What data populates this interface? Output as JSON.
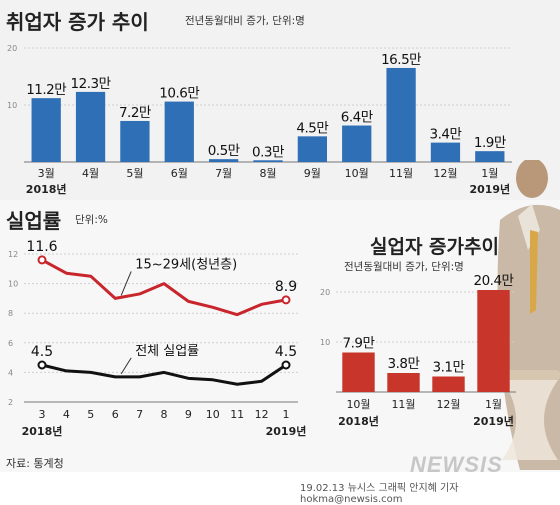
{
  "chart_data": [
    {
      "type": "bar",
      "title": "취업자 증가 추이",
      "subtitle": "전년동월대비 증가, 단위:명",
      "categories": [
        "3월",
        "4월",
        "5월",
        "6월",
        "7월",
        "8월",
        "9월",
        "10월",
        "11월",
        "12월",
        "1월"
      ],
      "values": [
        11.2,
        12.3,
        7.2,
        10.6,
        0.5,
        0.3,
        4.5,
        6.4,
        16.5,
        3.4,
        1.9
      ],
      "value_labels": [
        "11.2만",
        "12.3만",
        "7.2만",
        "10.6만",
        "0.5만",
        "0.3만",
        "4.5만",
        "6.4만",
        "16.5만",
        "3.4만",
        "1.9만"
      ],
      "year_labels": [
        {
          "index": 0,
          "text": "2018년"
        },
        {
          "index": 10,
          "text": "2019년"
        }
      ],
      "yticks": [
        10,
        20
      ],
      "ylim": [
        0,
        20
      ],
      "color": "#2f6fb5",
      "grid": true
    },
    {
      "type": "line",
      "title": "실업률",
      "subtitle": "단위:%",
      "categories": [
        "3",
        "4",
        "5",
        "6",
        "7",
        "8",
        "9",
        "10",
        "11",
        "12",
        "1"
      ],
      "series": [
        {
          "name": "15~29세(청년층)",
          "values": [
            11.6,
            10.7,
            10.5,
            9.0,
            9.3,
            10.0,
            8.8,
            8.4,
            7.9,
            8.6,
            8.9
          ],
          "color": "#c8252c",
          "start_label": "11.6",
          "end_label": "8.9"
        },
        {
          "name": "전체 실업률",
          "values": [
            4.5,
            4.1,
            4.0,
            3.7,
            3.7,
            4.0,
            3.6,
            3.5,
            3.2,
            3.4,
            4.5
          ],
          "color": "#111111",
          "start_label": "4.5",
          "end_label": "4.5"
        }
      ],
      "year_labels": [
        {
          "index": 0,
          "text": "2018년"
        },
        {
          "index": 10,
          "text": "2019년"
        }
      ],
      "yticks": [
        2,
        4,
        6,
        8,
        10,
        12
      ],
      "ylim": [
        2,
        12
      ],
      "grid": true
    },
    {
      "type": "bar",
      "title": "실업자 증가추이",
      "subtitle": "전년동월대비 증가, 단위:명",
      "categories": [
        "10월",
        "11월",
        "12월",
        "1월"
      ],
      "values": [
        7.9,
        3.8,
        3.1,
        20.4
      ],
      "value_labels": [
        "7.9만",
        "3.8만",
        "3.1만",
        "20.4만"
      ],
      "year_labels": [
        {
          "index": 0,
          "text": "2018년"
        },
        {
          "index": 3,
          "text": "2019년"
        }
      ],
      "yticks": [
        10,
        20
      ],
      "ylim": [
        0,
        20
      ],
      "color": "#c8352a",
      "grid": true
    }
  ],
  "source": "자료: 통계청",
  "credit": "19.02.13 뉴시스 그래픽 안지혜 기자 hokma@newsis.com",
  "brand": "NEWSIS"
}
